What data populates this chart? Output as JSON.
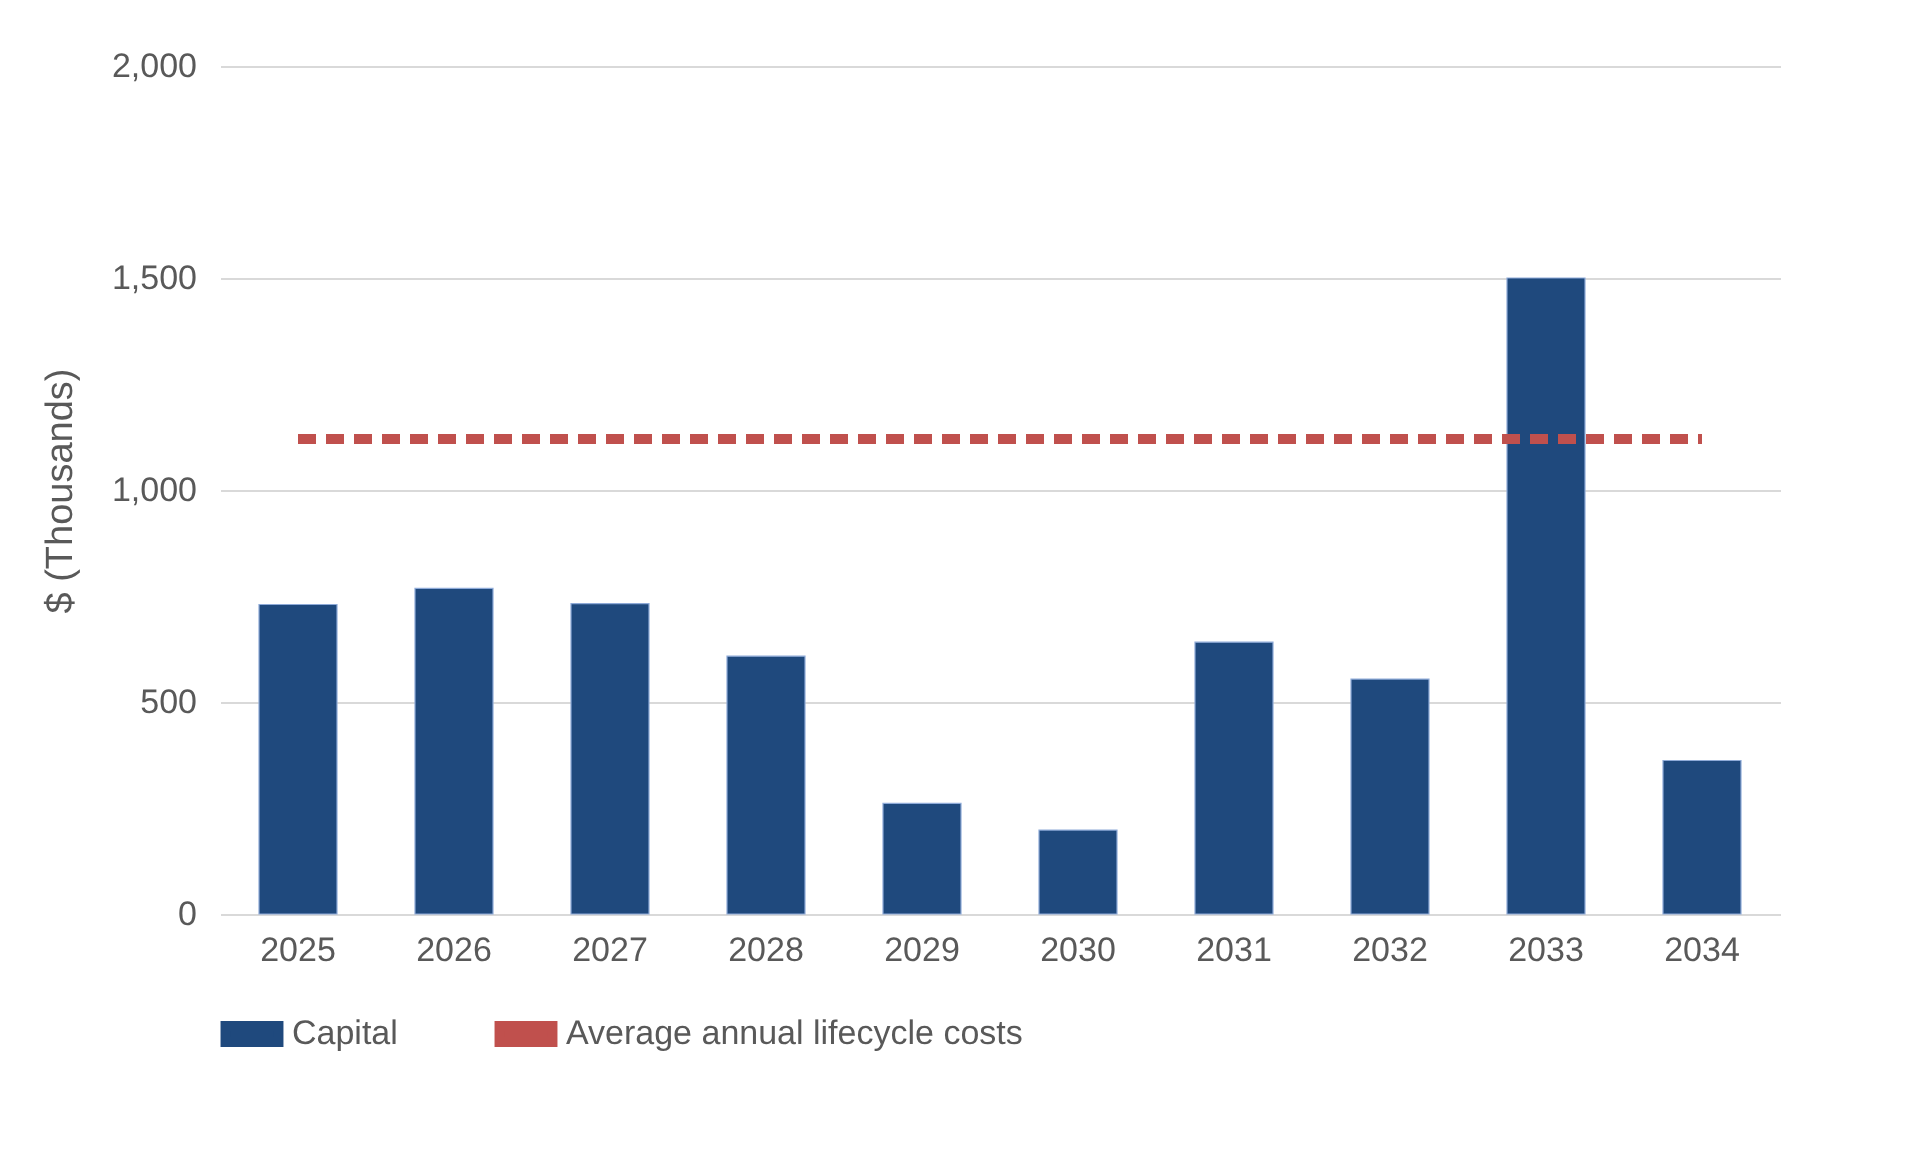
{
  "chart_data": {
    "type": "bar",
    "ylabel": "$ (Thousands)",
    "categories": [
      "2025",
      "2026",
      "2027",
      "2028",
      "2029",
      "2030",
      "2031",
      "2032",
      "2033",
      "2034"
    ],
    "series": [
      {
        "name": "Capital",
        "color": "#1f497d",
        "values": [
          730,
          768,
          732,
          608,
          261,
          198,
          641,
          554,
          1500,
          362
        ]
      },
      {
        "name": "Average annual lifecycle costs",
        "type": "line",
        "color": "#c0504d",
        "line_style": "dashed",
        "values": [
          1120,
          1120,
          1120,
          1120,
          1120,
          1120,
          1120,
          1120,
          1120,
          1120
        ]
      }
    ],
    "ylim": [
      0,
      2000
    ],
    "yticks": [
      {
        "value": 0,
        "label": "0"
      },
      {
        "value": 500,
        "label": "500"
      },
      {
        "value": 1000,
        "label": "1,000"
      },
      {
        "value": 1500,
        "label": "1,500"
      },
      {
        "value": 2000,
        "label": "2,000"
      }
    ],
    "grid": "y",
    "legend": "bottom",
    "marker": "none"
  }
}
